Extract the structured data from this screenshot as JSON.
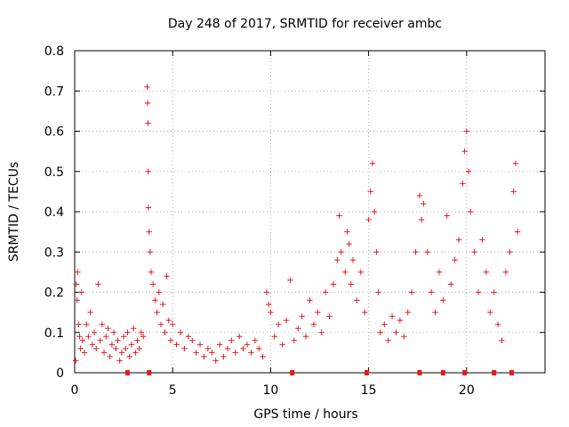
{
  "chart_data": {
    "type": "scatter",
    "title": "Day 248 of 2017, SRMTID for receiver ambc",
    "xlabel": "GPS time / hours",
    "ylabel": "SRMTID / TECUs",
    "xlim": [
      0,
      24
    ],
    "ylim": [
      0,
      0.8
    ],
    "xticks": [
      0,
      5,
      10,
      15,
      20
    ],
    "yticks": [
      0,
      0.1,
      0.2,
      0.3,
      0.4,
      0.5,
      0.6,
      0.7,
      0.8
    ],
    "xtick_labels": [
      "0",
      "5",
      "10",
      "15",
      "20"
    ],
    "ytick_labels": [
      "0",
      "0.1",
      "0.2",
      "0.3",
      "0.4",
      "0.5",
      "0.6",
      "0.7",
      "0.8"
    ],
    "grid": true,
    "marker": "+",
    "color": "#e41a1c",
    "series": [
      {
        "name": "SRMTID",
        "points": [
          [
            0.05,
            0.03
          ],
          [
            0.08,
            0.22
          ],
          [
            0.12,
            0.18
          ],
          [
            0.15,
            0.25
          ],
          [
            0.2,
            0.12
          ],
          [
            0.25,
            0.09
          ],
          [
            0.3,
            0.06
          ],
          [
            0.35,
            0.2
          ],
          [
            0.4,
            0.08
          ],
          [
            0.5,
            0.05
          ],
          [
            0.6,
            0.12
          ],
          [
            0.7,
            0.09
          ],
          [
            0.8,
            0.15
          ],
          [
            0.9,
            0.07
          ],
          [
            1.0,
            0.1
          ],
          [
            1.1,
            0.06
          ],
          [
            1.2,
            0.22
          ],
          [
            1.3,
            0.08
          ],
          [
            1.4,
            0.12
          ],
          [
            1.5,
            0.05
          ],
          [
            1.6,
            0.09
          ],
          [
            1.7,
            0.11
          ],
          [
            1.8,
            0.04
          ],
          [
            1.9,
            0.07
          ],
          [
            2.0,
            0.1
          ],
          [
            2.1,
            0.06
          ],
          [
            2.2,
            0.08
          ],
          [
            2.3,
            0.03
          ],
          [
            2.4,
            0.05
          ],
          [
            2.5,
            0.09
          ],
          [
            2.6,
            0.06
          ],
          [
            2.7,
            0.1
          ],
          [
            2.8,
            0.04
          ],
          [
            2.9,
            0.07
          ],
          [
            3.0,
            0.11
          ],
          [
            3.1,
            0.05
          ],
          [
            3.2,
            0.08
          ],
          [
            3.3,
            0.06
          ],
          [
            3.4,
            0.1
          ],
          [
            3.5,
            0.09
          ],
          [
            3.7,
            0.71
          ],
          [
            3.72,
            0.67
          ],
          [
            3.74,
            0.62
          ],
          [
            3.75,
            0.5
          ],
          [
            3.76,
            0.41
          ],
          [
            3.8,
            0.35
          ],
          [
            3.85,
            0.3
          ],
          [
            3.9,
            0.25
          ],
          [
            4.0,
            0.22
          ],
          [
            4.1,
            0.18
          ],
          [
            4.2,
            0.15
          ],
          [
            4.3,
            0.2
          ],
          [
            4.4,
            0.12
          ],
          [
            4.5,
            0.17
          ],
          [
            4.6,
            0.1
          ],
          [
            4.7,
            0.24
          ],
          [
            4.8,
            0.13
          ],
          [
            4.9,
            0.08
          ],
          [
            5.0,
            0.12
          ],
          [
            5.2,
            0.07
          ],
          [
            5.4,
            0.1
          ],
          [
            5.6,
            0.06
          ],
          [
            5.8,
            0.09
          ],
          [
            6.0,
            0.08
          ],
          [
            6.2,
            0.05
          ],
          [
            6.4,
            0.07
          ],
          [
            6.6,
            0.04
          ],
          [
            6.8,
            0.06
          ],
          [
            7.0,
            0.05
          ],
          [
            7.2,
            0.03
          ],
          [
            7.4,
            0.07
          ],
          [
            7.6,
            0.04
          ],
          [
            7.8,
            0.06
          ],
          [
            8.0,
            0.08
          ],
          [
            8.2,
            0.05
          ],
          [
            8.4,
            0.09
          ],
          [
            8.6,
            0.06
          ],
          [
            8.8,
            0.07
          ],
          [
            9.0,
            0.05
          ],
          [
            9.2,
            0.08
          ],
          [
            9.4,
            0.06
          ],
          [
            9.6,
            0.04
          ],
          [
            9.8,
            0.2
          ],
          [
            9.9,
            0.17
          ],
          [
            10.0,
            0.15
          ],
          [
            10.2,
            0.09
          ],
          [
            10.4,
            0.12
          ],
          [
            10.6,
            0.07
          ],
          [
            10.8,
            0.13
          ],
          [
            11.0,
            0.23
          ],
          [
            11.2,
            0.08
          ],
          [
            11.4,
            0.11
          ],
          [
            11.6,
            0.14
          ],
          [
            11.8,
            0.09
          ],
          [
            12.0,
            0.18
          ],
          [
            12.2,
            0.12
          ],
          [
            12.4,
            0.15
          ],
          [
            12.6,
            0.1
          ],
          [
            12.8,
            0.2
          ],
          [
            13.0,
            0.14
          ],
          [
            13.2,
            0.22
          ],
          [
            13.4,
            0.28
          ],
          [
            13.5,
            0.39
          ],
          [
            13.6,
            0.3
          ],
          [
            13.8,
            0.25
          ],
          [
            13.9,
            0.35
          ],
          [
            14.0,
            0.32
          ],
          [
            14.1,
            0.22
          ],
          [
            14.2,
            0.28
          ],
          [
            14.4,
            0.18
          ],
          [
            14.6,
            0.25
          ],
          [
            14.8,
            0.15
          ],
          [
            15.0,
            0.38
          ],
          [
            15.1,
            0.45
          ],
          [
            15.2,
            0.52
          ],
          [
            15.3,
            0.4
          ],
          [
            15.4,
            0.3
          ],
          [
            15.5,
            0.2
          ],
          [
            15.6,
            0.1
          ],
          [
            15.8,
            0.12
          ],
          [
            16.0,
            0.08
          ],
          [
            16.2,
            0.14
          ],
          [
            16.4,
            0.1
          ],
          [
            16.6,
            0.13
          ],
          [
            16.8,
            0.09
          ],
          [
            17.0,
            0.15
          ],
          [
            17.2,
            0.2
          ],
          [
            17.4,
            0.3
          ],
          [
            17.6,
            0.44
          ],
          [
            17.7,
            0.38
          ],
          [
            17.8,
            0.42
          ],
          [
            18.0,
            0.3
          ],
          [
            18.2,
            0.2
          ],
          [
            18.4,
            0.15
          ],
          [
            18.6,
            0.25
          ],
          [
            18.8,
            0.18
          ],
          [
            19.0,
            0.39
          ],
          [
            19.2,
            0.22
          ],
          [
            19.4,
            0.28
          ],
          [
            19.6,
            0.33
          ],
          [
            19.8,
            0.47
          ],
          [
            19.9,
            0.55
          ],
          [
            20.0,
            0.6
          ],
          [
            20.1,
            0.5
          ],
          [
            20.2,
            0.4
          ],
          [
            20.4,
            0.3
          ],
          [
            20.6,
            0.2
          ],
          [
            20.8,
            0.33
          ],
          [
            21.0,
            0.25
          ],
          [
            21.2,
            0.15
          ],
          [
            21.4,
            0.2
          ],
          [
            21.6,
            0.12
          ],
          [
            21.8,
            0.08
          ],
          [
            22.0,
            0.25
          ],
          [
            22.2,
            0.3
          ],
          [
            22.4,
            0.45
          ],
          [
            22.5,
            0.52
          ],
          [
            22.6,
            0.35
          ]
        ]
      }
    ],
    "axis_markers_x": [
      2.7,
      3.8,
      11.1,
      14.9,
      17.6,
      18.8,
      19.9,
      21.4,
      22.3
    ]
  }
}
